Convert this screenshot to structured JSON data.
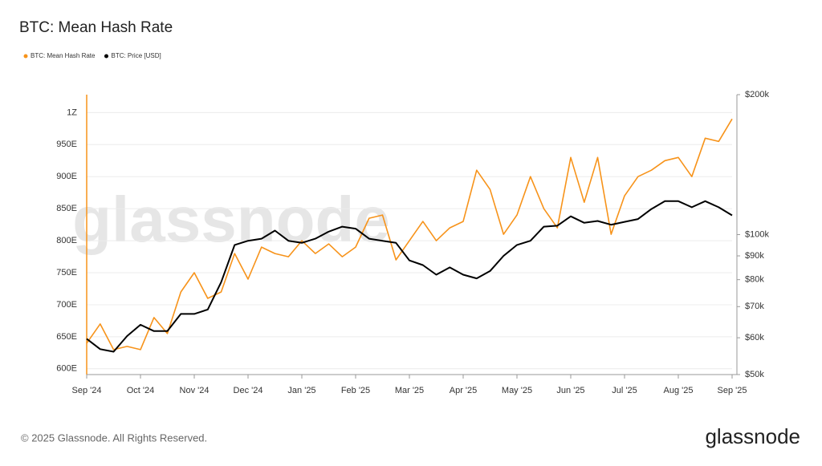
{
  "chart_data": {
    "type": "line",
    "title": "BTC: Mean Hash Rate",
    "footer": "© 2025 Glassnode. All Rights Reserved.",
    "brand": "glassnode",
    "x": [
      0,
      0.25,
      0.5,
      0.75,
      1,
      1.25,
      1.5,
      1.75,
      2,
      2.25,
      2.5,
      2.75,
      3,
      3.25,
      3.5,
      3.75,
      4,
      4.25,
      4.5,
      4.75,
      5,
      5.25,
      5.5,
      5.75,
      6,
      6.25,
      6.5,
      6.75,
      7,
      7.25,
      7.5,
      7.75,
      8,
      8.25,
      8.5,
      8.75,
      9,
      9.25,
      9.5,
      9.75,
      10,
      10.25,
      10.5,
      10.75,
      11,
      11.25,
      11.5,
      11.75,
      12
    ],
    "xlim": [
      0,
      12
    ],
    "xticks": [
      {
        "value": 0,
        "label": "Sep '24"
      },
      {
        "value": 1,
        "label": "Oct '24"
      },
      {
        "value": 2,
        "label": "Nov '24"
      },
      {
        "value": 3,
        "label": "Dec '24"
      },
      {
        "value": 4,
        "label": "Jan '25"
      },
      {
        "value": 5,
        "label": "Feb '25"
      },
      {
        "value": 6,
        "label": "Mar '25"
      },
      {
        "value": 7,
        "label": "Apr '25"
      },
      {
        "value": 8,
        "label": "May '25"
      },
      {
        "value": 9,
        "label": "Jun '25"
      },
      {
        "value": 10,
        "label": "Jul '25"
      },
      {
        "value": 11,
        "label": "Aug '25"
      },
      {
        "value": 12,
        "label": "Sep '25"
      }
    ],
    "ylim": [
      591,
      1028
    ],
    "yticks": [
      {
        "value": 600,
        "label": "600E"
      },
      {
        "value": 650,
        "label": "650E"
      },
      {
        "value": 700,
        "label": "700E"
      },
      {
        "value": 750,
        "label": "750E"
      },
      {
        "value": 800,
        "label": "800E"
      },
      {
        "value": 850,
        "label": "850E"
      },
      {
        "value": 900,
        "label": "900E"
      },
      {
        "value": 950,
        "label": "950E"
      },
      {
        "value": 1000,
        "label": "1Z"
      }
    ],
    "y2lim": [
      50000,
      200000
    ],
    "y2log": true,
    "y2ticks": [
      {
        "value": 50000,
        "label": "$50k"
      },
      {
        "value": 60000,
        "label": "$60k"
      },
      {
        "value": 70000,
        "label": "$70k"
      },
      {
        "value": 80000,
        "label": "$80k"
      },
      {
        "value": 90000,
        "label": "$90k"
      },
      {
        "value": 100000,
        "label": "$100k"
      },
      {
        "value": 200000,
        "label": "$200k"
      }
    ],
    "grid": true,
    "series": [
      {
        "name": "BTC: Mean Hash Rate",
        "color": "#f7931a",
        "values": [
          640,
          670,
          630,
          635,
          630,
          680,
          655,
          720,
          750,
          710,
          720,
          780,
          740,
          790,
          780,
          775,
          800,
          780,
          795,
          775,
          790,
          835,
          840,
          770,
          800,
          830,
          800,
          820,
          830,
          910,
          880,
          810,
          840,
          900,
          850,
          820,
          930,
          860,
          930,
          810,
          870,
          900,
          910,
          925,
          930,
          900,
          960,
          955,
          990
        ]
      },
      {
        "name": "BTC: Price [USD]",
        "color": "#000000",
        "axis": "y2",
        "values": [
          59700,
          56700,
          56000,
          60500,
          64000,
          62000,
          62000,
          67500,
          67500,
          69000,
          79000,
          95000,
          97000,
          98000,
          102000,
          97000,
          96000,
          98000,
          101500,
          104000,
          103000,
          98000,
          97000,
          96000,
          88000,
          86000,
          82000,
          85000,
          82000,
          80500,
          83500,
          90000,
          95000,
          97000,
          104000,
          104500,
          109500,
          106000,
          107000,
          105000,
          106500,
          108000,
          113500,
          118000,
          118000,
          114500,
          118000,
          114500,
          110000
        ]
      }
    ]
  }
}
